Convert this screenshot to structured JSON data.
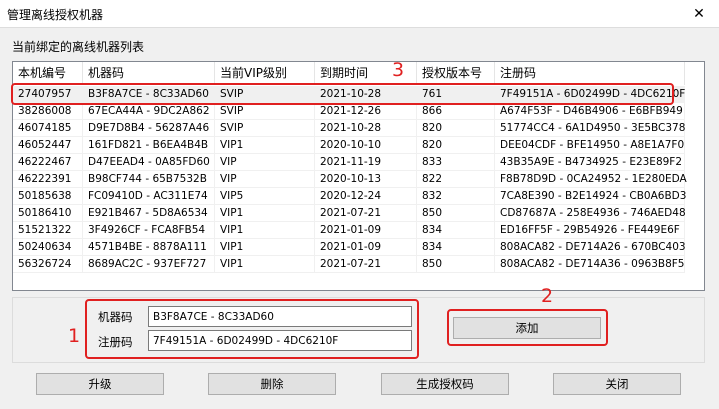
{
  "window": {
    "title": "管理离线授权机器",
    "close_icon": "close-icon"
  },
  "list_label": "当前绑定的离线机器列表",
  "table": {
    "columns": [
      "本机编号",
      "机器码",
      "当前VIP级别",
      "到期时间",
      "授权版本号",
      "注册码"
    ],
    "rows": [
      [
        "27407957",
        "B3F8A7CE - 8C33AD60",
        "SVIP",
        "2021-10-28",
        "761",
        "7F49151A - 6D02499D - 4DC6210F"
      ],
      [
        "38286008",
        "67ECA44A - 9DC2A862",
        "SVIP",
        "2021-12-26",
        "866",
        "A674F53F - D46B4906 - E6BFB949"
      ],
      [
        "46074185",
        "D9E7D8B4 - 56287A46",
        "SVIP",
        "2021-10-28",
        "820",
        "51774CC4 - 6A1D4950 - 3E5BC378"
      ],
      [
        "46052447",
        "161FD821 - B6EA4B4B",
        "VIP1",
        "2020-10-10",
        "820",
        "DEE04CDF - BFE14950 - A8E1A7F0"
      ],
      [
        "46222467",
        "D47EEAD4 - 0A85FD60",
        "VIP",
        "2021-11-19",
        "833",
        "43B35A9E - B4734925 - E23E89F2"
      ],
      [
        "46222391",
        "B98CF744 - 65B7532B",
        "VIP",
        "2020-10-13",
        "822",
        "F8B78D9D - 0CA24952 - 1E280EDA"
      ],
      [
        "50185638",
        "FC09410D - AC311E74",
        "VIP5",
        "2020-12-24",
        "832",
        "7CA8E390 - B2E14924 - CB0A6BD3"
      ],
      [
        "50186410",
        "E921B467 - 5D8A6534",
        "VIP1",
        "2021-07-21",
        "850",
        "CD87687A - 258E4936 - 746AED48"
      ],
      [
        "51521322",
        "3F4926CF - FCA8FB54",
        "VIP1",
        "2021-01-09",
        "834",
        "ED16FF5F - 29B54926 - FE449E6F"
      ],
      [
        "50240634",
        "4571B4BE - 8878A111",
        "VIP1",
        "2021-01-09",
        "834",
        "808ACA82 - DE714A26 - 670BC403"
      ],
      [
        "56326724",
        "8689AC2C - 937EF727",
        "VIP1",
        "2021-07-21",
        "850",
        "808ACA82 - DE714A36 - 0963B8F5"
      ]
    ],
    "selected_index": 0
  },
  "form": {
    "machine_label": "机器码",
    "machine_value": "B3F8A7CE - 8C33AD60",
    "reg_label": "注册码",
    "reg_value": "7F49151A - 6D02499D - 4DC6210F",
    "add_label": "添加"
  },
  "buttons": {
    "upgrade": "升级",
    "delete": "删除",
    "generate": "生成授权码",
    "close": "关闭"
  },
  "annotations": {
    "n1": "1",
    "n2": "2",
    "n3": "3",
    "color": "#e02020"
  }
}
